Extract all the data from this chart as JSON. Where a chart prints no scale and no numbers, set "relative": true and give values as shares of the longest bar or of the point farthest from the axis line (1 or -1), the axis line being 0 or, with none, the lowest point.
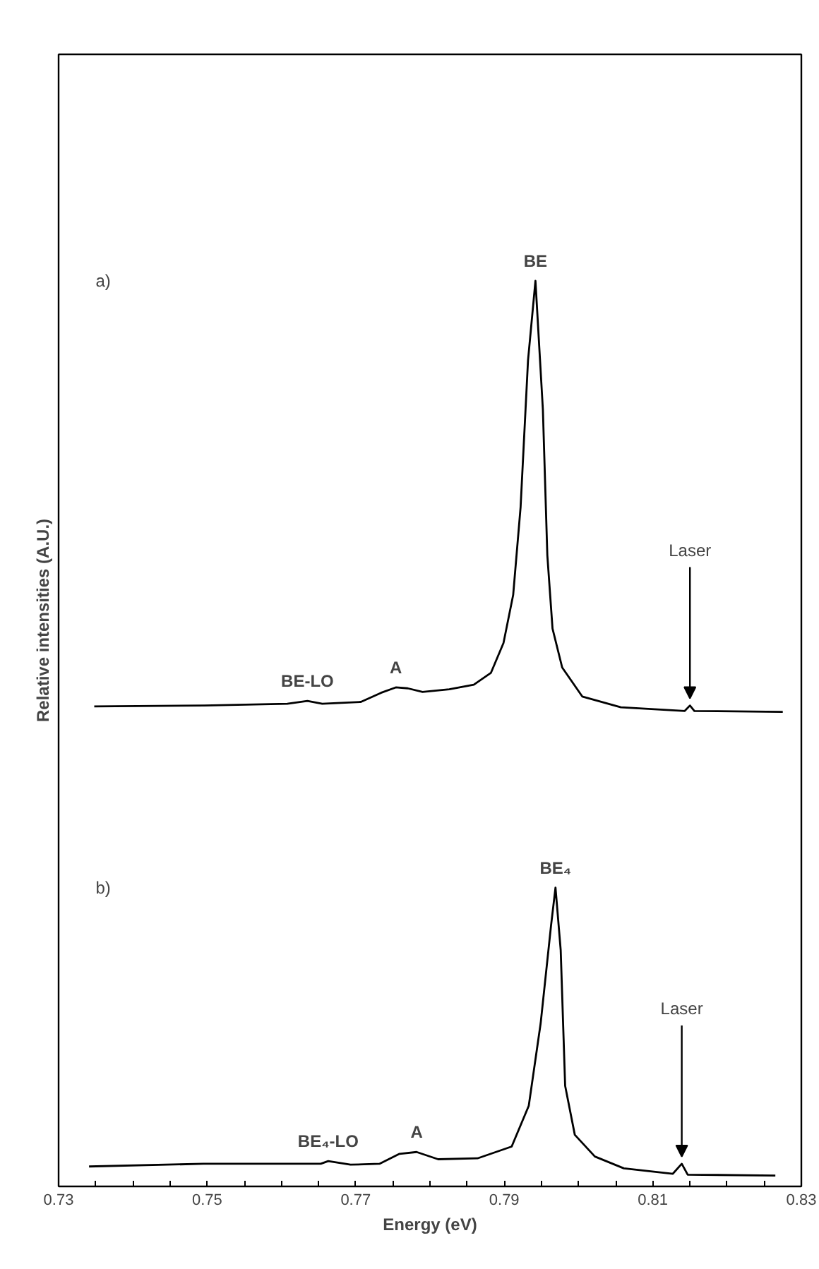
{
  "chart_data": {
    "type": "line",
    "relative": true,
    "xlabel": "Energy (eV)",
    "ylabel": "Relative intensities (A.U.)",
    "xlim": [
      0.73,
      0.83
    ],
    "xticks": [
      0.73,
      {
        "value": 0.735,
        "label": null
      },
      {
        "value": 0.74,
        "label": null
      },
      {
        "value": 0.745,
        "label": null
      },
      0.75,
      {
        "value": 0.755,
        "label": null
      },
      {
        "value": 0.76,
        "label": null
      },
      {
        "value": 0.765,
        "label": null
      },
      0.77,
      {
        "value": 0.775,
        "label": null
      },
      {
        "value": 0.78,
        "label": null
      },
      {
        "value": 0.785,
        "label": null
      },
      0.79,
      {
        "value": 0.795,
        "label": null
      },
      {
        "value": 0.8,
        "label": null
      },
      {
        "value": 0.805,
        "label": null
      },
      0.81,
      {
        "value": 0.815,
        "label": null
      },
      {
        "value": 0.82,
        "label": null
      },
      {
        "value": 0.825,
        "label": null
      },
      0.83
    ],
    "tick_labels": "x",
    "marker": "none",
    "line_style": "solid",
    "series": [
      {
        "color": "#000000",
        "x": [
          0.7348,
          0.7496,
          0.7608,
          0.7635,
          0.7655,
          0.7707,
          0.7734,
          0.7754,
          0.777,
          0.779,
          0.7826,
          0.7859,
          0.7882,
          0.7899,
          0.7912,
          0.7922,
          0.7932,
          0.7942,
          0.7952,
          0.7958,
          0.7965,
          0.7978,
          0.8005,
          0.8057,
          0.8143,
          0.815,
          0.8156,
          0.8275
        ],
        "values": [
          0.53,
          0.531,
          0.533,
          0.536,
          0.533,
          0.535,
          0.545,
          0.551,
          0.55,
          0.546,
          0.549,
          0.554,
          0.567,
          0.6,
          0.653,
          0.75,
          0.912,
          1.0,
          0.858,
          0.697,
          0.616,
          0.573,
          0.541,
          0.529,
          0.525,
          0.531,
          0.525,
          0.524
        ]
      },
      {
        "color": "#000000",
        "x": [
          0.7341,
          0.7495,
          0.7653,
          0.7663,
          0.7693,
          0.7732,
          0.7759,
          0.7782,
          0.7811,
          0.7864,
          0.791,
          0.7933,
          0.7949,
          0.7963,
          0.7969,
          0.7976,
          0.7982,
          0.7995,
          0.8022,
          0.8061,
          0.8127,
          0.8139,
          0.8147,
          0.8265
        ],
        "values": [
          0.022,
          0.025,
          0.025,
          0.028,
          0.024,
          0.025,
          0.036,
          0.038,
          0.03,
          0.031,
          0.044,
          0.089,
          0.18,
          0.288,
          0.33,
          0.261,
          0.111,
          0.057,
          0.033,
          0.02,
          0.014,
          0.025,
          0.013,
          0.012
        ]
      }
    ],
    "annotations": [
      "a)",
      "b)",
      {
        "text": "BE",
        "x": 0.7942,
        "y": 1.0
      },
      {
        "text": "BE-LO",
        "x": 0.7635,
        "y": 0.536
      },
      {
        "text": "A",
        "x": 0.7754,
        "y": 0.551
      },
      {
        "text": "Laser",
        "x": 0.815,
        "y": 0.531
      },
      {
        "text": "BE₄",
        "x": 0.7969,
        "y": 0.33
      },
      {
        "text": "BE₄-LO",
        "x": 0.7663,
        "y": 0.028
      },
      {
        "text": "A",
        "x": 0.7782,
        "y": 0.038
      },
      {
        "text": "Laser",
        "x": 0.8139,
        "y": 0.025
      }
    ]
  }
}
